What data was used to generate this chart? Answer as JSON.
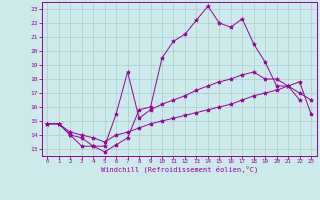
{
  "xlabel": "Windchill (Refroidissement éolien,°C)",
  "bg_color": "#cceaea",
  "line_color": "#990099",
  "grid_color": "#aacccc",
  "xlim": [
    -0.5,
    23.5
  ],
  "ylim": [
    12.5,
    23.5
  ],
  "yticks": [
    13,
    14,
    15,
    16,
    17,
    18,
    19,
    20,
    21,
    22,
    23
  ],
  "xticks": [
    0,
    1,
    2,
    3,
    4,
    5,
    6,
    7,
    8,
    9,
    10,
    11,
    12,
    13,
    14,
    15,
    16,
    17,
    18,
    19,
    20,
    21,
    22,
    23
  ],
  "series": [
    {
      "x": [
        0,
        1,
        2,
        3,
        4,
        5,
        6,
        7,
        8,
        9,
        10,
        11,
        12,
        13,
        14,
        15,
        16,
        17,
        18,
        19,
        20,
        21,
        22
      ],
      "y": [
        14.8,
        14.8,
        14.0,
        13.2,
        13.2,
        12.8,
        13.3,
        13.8,
        15.8,
        16.0,
        19.5,
        20.7,
        21.2,
        22.2,
        23.2,
        22.0,
        21.7,
        22.3,
        20.5,
        19.2,
        17.5,
        17.5,
        16.5
      ]
    },
    {
      "x": [
        0,
        1,
        2,
        3,
        4,
        5,
        6,
        7,
        8,
        9,
        10,
        11,
        12,
        13,
        14,
        15,
        16,
        17,
        18,
        19,
        20,
        21,
        22,
        23
      ],
      "y": [
        14.8,
        14.8,
        14.0,
        13.8,
        13.2,
        13.2,
        15.5,
        18.5,
        15.2,
        15.8,
        16.2,
        16.5,
        16.8,
        17.2,
        17.5,
        17.8,
        18.0,
        18.3,
        18.5,
        18.0,
        18.0,
        17.5,
        17.0,
        16.5
      ]
    },
    {
      "x": [
        0,
        1,
        2,
        3,
        4,
        5,
        6,
        7,
        8,
        9,
        10,
        11,
        12,
        13,
        14,
        15,
        16,
        17,
        18,
        19,
        20,
        21,
        22,
        23
      ],
      "y": [
        14.8,
        14.8,
        14.2,
        14.0,
        13.8,
        13.5,
        14.0,
        14.2,
        14.5,
        14.8,
        15.0,
        15.2,
        15.4,
        15.6,
        15.8,
        16.0,
        16.2,
        16.5,
        16.8,
        17.0,
        17.2,
        17.5,
        17.8,
        15.5
      ]
    }
  ]
}
